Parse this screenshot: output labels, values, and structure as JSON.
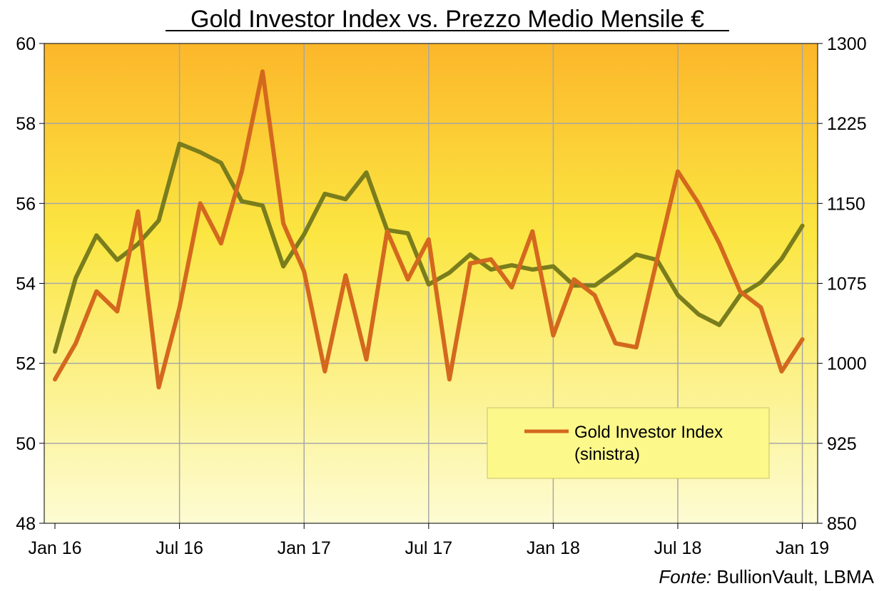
{
  "chart_data": {
    "type": "line",
    "title": "Gold Investor Index vs. Prezzo Medio Mensile €",
    "source_label": "Fonte:",
    "source_text": " BullionVault, LBMA",
    "x_tick_labels": [
      "Jan 16",
      "Jul 16",
      "Jan 17",
      "Jul 17",
      "Jan 18",
      "Jul 18",
      "Jan 19"
    ],
    "y_left": {
      "min": 48,
      "max": 60,
      "ticks": [
        "48",
        "50",
        "52",
        "54",
        "56",
        "58",
        "60"
      ]
    },
    "y_right": {
      "min": 850,
      "max": 1300,
      "ticks": [
        "850",
        "925",
        "1000",
        "1075",
        "1150",
        "1225",
        "1300"
      ]
    },
    "grid": true,
    "legend_position": "bottom-right",
    "legend_lines": [
      "Gold Investor Index",
      "(sinistra)"
    ],
    "x": [
      "Jan 16",
      "Feb 16",
      "Mar 16",
      "Apr 16",
      "May 16",
      "Jun 16",
      "Jul 16",
      "Aug 16",
      "Sep 16",
      "Oct 16",
      "Nov 16",
      "Dec 16",
      "Jan 17",
      "Feb 17",
      "Mar 17",
      "Apr 17",
      "May 17",
      "Jun 17",
      "Jul 17",
      "Aug 17",
      "Sep 17",
      "Oct 17",
      "Nov 17",
      "Dec 17",
      "Jan 18",
      "Feb 18",
      "Mar 18",
      "Apr 18",
      "May 18",
      "Jun 18",
      "Jul 18",
      "Aug 18",
      "Sep 18",
      "Oct 18",
      "Nov 18",
      "Dec 18",
      "Jan 19"
    ],
    "series": [
      {
        "name": "Gold Investor Index",
        "axis": "left",
        "color": "#d4681e",
        "values": [
          51.6,
          52.5,
          53.8,
          53.3,
          55.8,
          51.4,
          53.4,
          56.0,
          55.0,
          56.8,
          59.3,
          55.5,
          54.3,
          51.8,
          54.2,
          52.1,
          55.3,
          54.1,
          55.1,
          51.6,
          54.5,
          54.6,
          53.9,
          55.3,
          52.7,
          54.1,
          53.7,
          52.5,
          52.4,
          54.6,
          56.8,
          56.0,
          55.0,
          53.8,
          53.4,
          51.8,
          52.6
        ]
      },
      {
        "axis": "right",
        "color": "#7a7d1c",
        "values": [
          1011,
          1080,
          1120,
          1097,
          1112,
          1134,
          1206,
          1198,
          1188,
          1152,
          1148,
          1091,
          1121,
          1159,
          1154,
          1179,
          1125,
          1122,
          1074,
          1085,
          1102,
          1088,
          1092,
          1088,
          1091,
          1073,
          1073,
          1087,
          1102,
          1097,
          1064,
          1046,
          1036,
          1064,
          1076,
          1098,
          1129
        ]
      }
    ]
  },
  "colors": {
    "plot_top": "#fcb72a",
    "plot_mid": "#fbe642",
    "plot_bottom": "#fdfcd3",
    "grid": "#a8a8a8",
    "legend_bg": "#fcf88a",
    "legend_border": "#c9c26a"
  }
}
